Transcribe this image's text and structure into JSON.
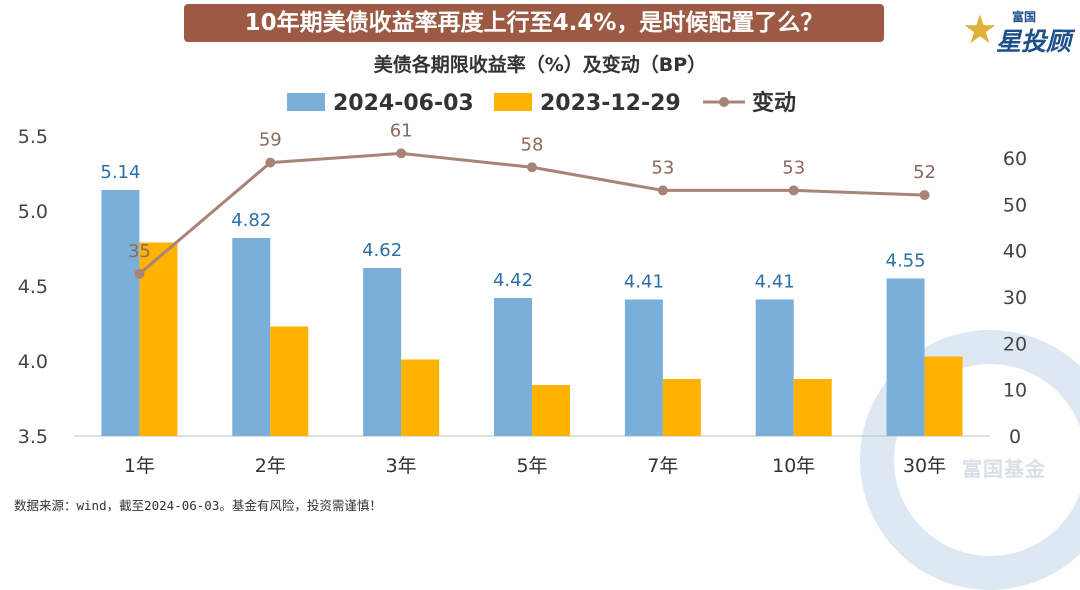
{
  "banner": "10年期美债收益率再度上行至4.4%，是时候配置了么？",
  "logo": {
    "line1": "富国",
    "line2": "星投顾"
  },
  "watermark": "富国基金",
  "source": "数据来源：wind，截至2024-06-03。基金有风险，投资需谨慎！",
  "colors": {
    "series1": "#7aafda",
    "series2": "#ffb300",
    "line": "#a88478",
    "label1": "#2e6fa8",
    "label3": "#8b6a5e"
  },
  "chart_data": {
    "type": "bar+line",
    "title": "美债各期限收益率（%）及变动（BP）",
    "categories": [
      "1年",
      "2年",
      "3年",
      "5年",
      "7年",
      "10年",
      "30年"
    ],
    "series": [
      {
        "name": "2024-06-03",
        "type": "bar",
        "axis": "left",
        "values": [
          5.14,
          4.82,
          4.62,
          4.42,
          4.41,
          4.41,
          4.55
        ],
        "labels": [
          "5.14",
          "4.82",
          "4.62",
          "4.42",
          "4.41",
          "4.41",
          "4.55"
        ]
      },
      {
        "name": "2023-12-29",
        "type": "bar",
        "axis": "left",
        "values": [
          4.79,
          4.23,
          4.01,
          3.84,
          3.88,
          3.88,
          4.03
        ]
      },
      {
        "name": "变动",
        "type": "line",
        "axis": "right",
        "values": [
          35,
          59,
          61,
          58,
          53,
          53,
          52
        ],
        "labels": [
          "35",
          "59",
          "61",
          "58",
          "53",
          "53",
          "52"
        ]
      }
    ],
    "left_axis": {
      "min": 3.5,
      "max": 5.5,
      "ticks": [
        "3.5",
        "4.0",
        "4.5",
        "5.0",
        "5.5"
      ]
    },
    "right_axis": {
      "min": 0,
      "max": 60,
      "ticks": [
        "0",
        "10",
        "20",
        "30",
        "40",
        "50",
        "60"
      ]
    },
    "legend_position": "top-center",
    "grid": false
  }
}
